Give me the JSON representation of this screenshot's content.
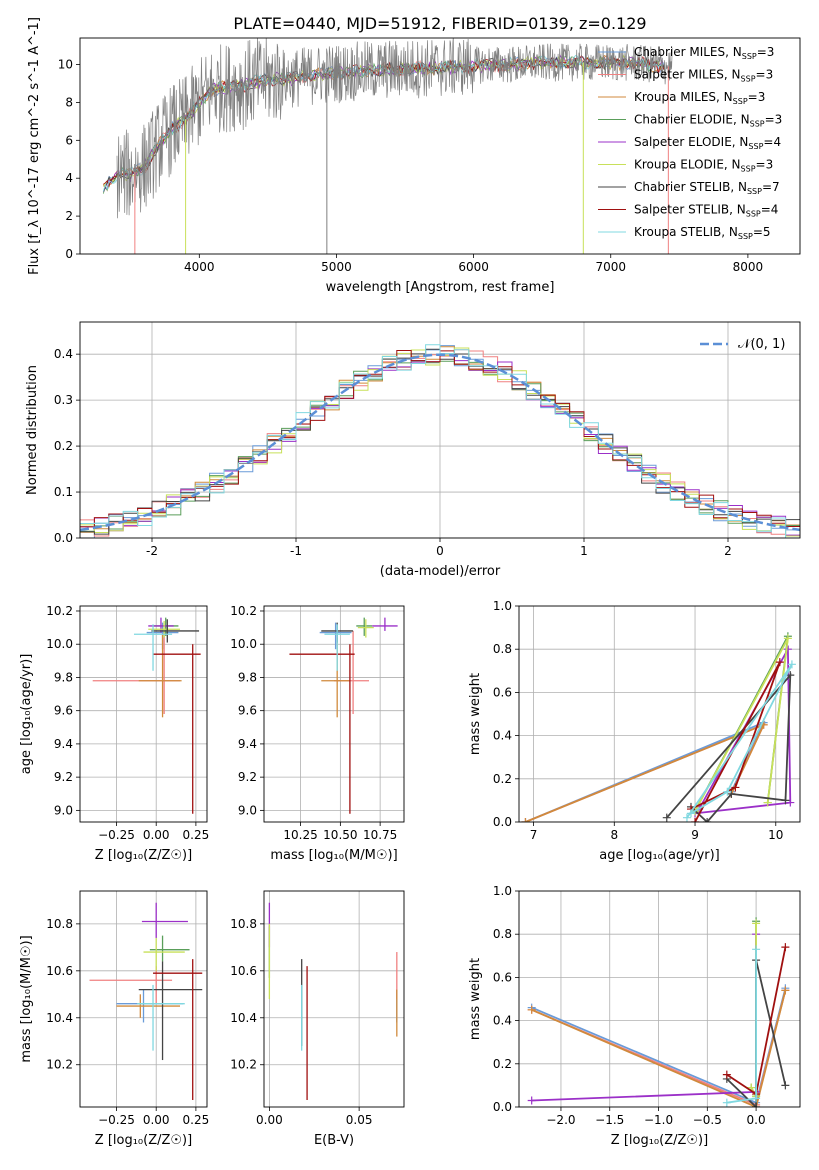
{
  "figure_title": "PLATE=0440, MJD=51912, FIBERID=0139, z=0.129",
  "colors": {
    "chabrier_miles": "#6a9bd8",
    "salpeter_miles": "#f08080",
    "kroupa_miles": "#d08a3c",
    "chabrier_elodie": "#5a9e5a",
    "salpeter_elodie": "#9b30c8",
    "kroupa_elodie": "#c8e05a",
    "chabrier_stelib": "#444444",
    "salpeter_stelib": "#a01010",
    "kroupa_stelib": "#80d8e0",
    "data": "#7f7f7f",
    "normal": "#5b8fd6"
  },
  "chart_data": [
    {
      "id": "spectrum",
      "type": "line",
      "xlabel": "wavelength [Angstrom, rest frame]",
      "ylabel": "Flux [f_λ 10^-17 erg cm^-2 s^-1 A^-1]",
      "xlim": [
        3130,
        8380
      ],
      "ylim": [
        0,
        11.4
      ],
      "xticks": [
        4000,
        5000,
        6000,
        7000,
        8000
      ],
      "yticks": [
        0,
        2,
        4,
        6,
        8,
        10
      ],
      "legend_position": "top-right",
      "legend": [
        {
          "key": "chabrier_miles",
          "base": "Chabrier MILES, N",
          "sub": "SSP",
          "tail": "=3"
        },
        {
          "key": "salpeter_miles",
          "base": "Salpeter MILES, N",
          "sub": "SSP",
          "tail": "=3"
        },
        {
          "key": "kroupa_miles",
          "base": "Kroupa MILES, N",
          "sub": "SSP",
          "tail": "=3"
        },
        {
          "key": "chabrier_elodie",
          "base": "Chabrier ELODIE, N",
          "sub": "SSP",
          "tail": "=3"
        },
        {
          "key": "salpeter_elodie",
          "base": "Salpeter ELODIE, N",
          "sub": "SSP",
          "tail": "=4"
        },
        {
          "key": "kroupa_elodie",
          "base": "Kroupa ELODIE, N",
          "sub": "SSP",
          "tail": "=3"
        },
        {
          "key": "chabrier_stelib",
          "base": "Chabrier STELIB, N",
          "sub": "SSP",
          "tail": "=7"
        },
        {
          "key": "salpeter_stelib",
          "base": "Salpeter STELIB, N",
          "sub": "SSP",
          "tail": "=4"
        },
        {
          "key": "kroupa_stelib",
          "base": "Kroupa STELIB, N",
          "sub": "SSP",
          "tail": "=5"
        }
      ],
      "continuum": {
        "x": [
          3300,
          3400,
          3500,
          3600,
          3700,
          3800,
          3900,
          4000,
          4100,
          4300,
          4500,
          4700,
          4900,
          5100,
          5300,
          5500,
          5700,
          5900,
          6100,
          6300,
          6500,
          6700,
          6900,
          7100,
          7300,
          7400
        ],
        "y": [
          3.4,
          4.2,
          4.2,
          4.6,
          5.7,
          6.6,
          7.1,
          8.0,
          8.7,
          8.9,
          9.2,
          9.3,
          9.5,
          9.6,
          9.7,
          9.8,
          9.8,
          9.9,
          10.0,
          10.0,
          10.1,
          10.1,
          10.1,
          10.1,
          10.0,
          9.9
        ]
      },
      "model_range": [
        3300,
        7400
      ],
      "data_range": [
        3400,
        7450
      ]
    },
    {
      "id": "residuals",
      "type": "step",
      "xlabel": "(data-model)/error",
      "ylabel": "Normed distribution",
      "xlim": [
        -2.5,
        2.5
      ],
      "ylim": [
        0,
        0.47
      ],
      "xticks": [
        -2,
        -1,
        0,
        1,
        2
      ],
      "yticks": [
        0.0,
        0.1,
        0.2,
        0.3,
        0.4
      ],
      "legend_position": "top-right",
      "normal_label": "𝒩(0, 1)",
      "bin_width": 0.1
    },
    {
      "id": "age_vs_Z",
      "type": "errorbar",
      "xlabel": "Z [log₁₀(Z/Z☉)]",
      "ylabel": "age  [log₁₀(age/yr)]",
      "xlim": [
        -0.48,
        0.32
      ],
      "ylim": [
        8.93,
        10.23
      ],
      "xticks": [
        -0.25,
        0.0,
        0.25
      ],
      "xtick_labels": [
        "−0.25",
        "0.00",
        "0.25"
      ],
      "yticks": [
        9.0,
        9.2,
        9.4,
        9.6,
        9.8,
        10.0,
        10.2
      ],
      "points": [
        {
          "key": "chabrier_miles",
          "x": 0.04,
          "y": 10.07,
          "xerr": [
            0.1,
            0.1
          ],
          "yerr": [
            0.1,
            0.06
          ]
        },
        {
          "key": "salpeter_miles",
          "x": 0.05,
          "y": 9.78,
          "xerr": [
            0.45,
            0.1
          ],
          "yerr": [
            0.2,
            0.3
          ]
        },
        {
          "key": "kroupa_miles",
          "x": 0.04,
          "y": 9.78,
          "xerr": [
            0.15,
            0.12
          ],
          "yerr": [
            0.22,
            0.28
          ]
        },
        {
          "key": "chabrier_elodie",
          "x": 0.06,
          "y": 10.11,
          "xerr": [
            0.08,
            0.08
          ],
          "yerr": [
            0.06,
            0.05
          ]
        },
        {
          "key": "salpeter_elodie",
          "x": 0.03,
          "y": 10.11,
          "xerr": [
            0.08,
            0.08
          ],
          "yerr": [
            0.04,
            0.05
          ]
        },
        {
          "key": "kroupa_elodie",
          "x": 0.05,
          "y": 10.09,
          "xerr": [
            0.1,
            0.1
          ],
          "yerr": [
            0.05,
            0.05
          ]
        },
        {
          "key": "chabrier_stelib",
          "x": 0.07,
          "y": 10.08,
          "xerr": [
            0.1,
            0.2
          ],
          "yerr": [
            0.07,
            0.07
          ]
        },
        {
          "key": "salpeter_stelib",
          "x": 0.23,
          "y": 9.94,
          "xerr": [
            0.25,
            0.05
          ],
          "yerr": [
            0.96,
            0.06
          ]
        },
        {
          "key": "kroupa_stelib",
          "x": -0.02,
          "y": 10.06,
          "xerr": [
            0.12,
            0.12
          ],
          "yerr": [
            0.22,
            0.06
          ]
        }
      ]
    },
    {
      "id": "age_vs_mass",
      "type": "errorbar",
      "xlabel": "mass [log₁₀(M/M☉)]",
      "ylabel": "",
      "xlim": [
        10.02,
        10.9
      ],
      "ylim": [
        8.93,
        10.23
      ],
      "xticks": [
        10.25,
        10.5,
        10.75
      ],
      "xtick_labels": [
        "10.25",
        "10.50",
        "10.75"
      ],
      "yticks": [
        9.0,
        9.2,
        9.4,
        9.6,
        9.8,
        10.0,
        10.2
      ],
      "points": [
        {
          "key": "chabrier_miles",
          "x": 10.47,
          "y": 10.07,
          "xerr": [
            0.1,
            0.1
          ],
          "yerr": [
            0.1,
            0.06
          ]
        },
        {
          "key": "salpeter_miles",
          "x": 10.58,
          "y": 9.78,
          "xerr": [
            0.12,
            0.1
          ],
          "yerr": [
            0.2,
            0.3
          ]
        },
        {
          "key": "kroupa_miles",
          "x": 10.48,
          "y": 9.78,
          "xerr": [
            0.1,
            0.08
          ],
          "yerr": [
            0.22,
            0.26
          ]
        },
        {
          "key": "chabrier_elodie",
          "x": 10.65,
          "y": 10.11,
          "xerr": [
            0.05,
            0.05
          ],
          "yerr": [
            0.06,
            0.05
          ]
        },
        {
          "key": "salpeter_elodie",
          "x": 10.78,
          "y": 10.11,
          "xerr": [
            0.08,
            0.08
          ],
          "yerr": [
            0.03,
            0.05
          ]
        },
        {
          "key": "kroupa_elodie",
          "x": 10.66,
          "y": 10.1,
          "xerr": [
            0.05,
            0.05
          ],
          "yerr": [
            0.06,
            0.05
          ]
        },
        {
          "key": "chabrier_stelib",
          "x": 10.48,
          "y": 10.08,
          "xerr": [
            0.1,
            0.1
          ],
          "yerr": [
            0.07,
            0.05
          ]
        },
        {
          "key": "salpeter_stelib",
          "x": 10.56,
          "y": 9.94,
          "xerr": [
            0.38,
            0.03
          ],
          "yerr": [
            0.96,
            0.06
          ]
        },
        {
          "key": "kroupa_stelib",
          "x": 10.48,
          "y": 10.06,
          "xerr": [
            0.08,
            0.08
          ],
          "yerr": [
            0.22,
            0.06
          ]
        }
      ]
    },
    {
      "id": "weight_vs_age",
      "type": "line",
      "xlabel": "age  [log₁₀(age/yr)]",
      "ylabel": "mass weight",
      "xlim": [
        6.82,
        10.3
      ],
      "ylim": [
        0,
        1
      ],
      "xticks": [
        7,
        8,
        9,
        10
      ],
      "yticks": [
        0.0,
        0.2,
        0.4,
        0.6,
        0.8,
        1.0
      ],
      "series": [
        {
          "key": "chabrier_miles",
          "x": [
            6.9,
            9.85,
            9.45
          ],
          "y": [
            0.0,
            0.46,
            0.14
          ]
        },
        {
          "key": "salpeter_miles",
          "x": [
            6.9,
            9.85,
            9.45
          ],
          "y": [
            0.0,
            0.45,
            0.13
          ]
        },
        {
          "key": "kroupa_miles",
          "x": [
            6.9,
            9.85,
            9.45
          ],
          "y": [
            0.0,
            0.45,
            0.13
          ]
        },
        {
          "key": "chabrier_elodie",
          "x": [
            9.0,
            10.15,
            9.9
          ],
          "y": [
            0.05,
            0.86,
            0.09
          ]
        },
        {
          "key": "salpeter_elodie",
          "x": [
            9.05,
            10.15,
            10.18,
            9.0
          ],
          "y": [
            0.06,
            0.8,
            0.09,
            0.04
          ]
        },
        {
          "key": "kroupa_elodie",
          "x": [
            9.0,
            10.15,
            9.9
          ],
          "y": [
            0.05,
            0.85,
            0.09
          ]
        },
        {
          "key": "chabrier_stelib",
          "x": [
            8.65,
            10.18,
            10.12,
            9.45,
            9.15,
            8.95
          ],
          "y": [
            0.02,
            0.68,
            0.1,
            0.13,
            0.0,
            0.07
          ]
        },
        {
          "key": "salpeter_stelib",
          "x": [
            9.0,
            10.05,
            9.5,
            8.95
          ],
          "y": [
            0.0,
            0.74,
            0.16,
            0.06
          ]
        },
        {
          "key": "kroupa_stelib",
          "x": [
            8.9,
            10.2,
            9.4,
            8.95
          ],
          "y": [
            0.02,
            0.73,
            0.14,
            0.04
          ]
        }
      ]
    },
    {
      "id": "mass_vs_Z",
      "type": "errorbar",
      "xlabel": "Z [log₁₀(Z/Z☉)]",
      "ylabel": "mass [log₁₀(M/M☉)]",
      "xlim": [
        -0.48,
        0.32
      ],
      "ylim": [
        10.02,
        10.94
      ],
      "xticks": [
        -0.25,
        0.0,
        0.25
      ],
      "xtick_labels": [
        "−0.25",
        "0.00",
        "0.25"
      ],
      "yticks": [
        10.2,
        10.4,
        10.6,
        10.8
      ],
      "points": [
        {
          "key": "chabrier_miles",
          "x": -0.08,
          "y": 10.46,
          "xerr": [
            0.17,
            0.25
          ],
          "yerr": [
            0.08,
            0.06
          ]
        },
        {
          "key": "salpeter_miles",
          "x": 0.0,
          "y": 10.56,
          "xerr": [
            0.42,
            0.1
          ],
          "yerr": [
            0.1,
            0.06
          ]
        },
        {
          "key": "kroupa_miles",
          "x": -0.1,
          "y": 10.45,
          "xerr": [
            0.15,
            0.25
          ],
          "yerr": [
            0.05,
            0.05
          ]
        },
        {
          "key": "chabrier_elodie",
          "x": 0.04,
          "y": 10.69,
          "xerr": [
            0.08,
            0.17
          ],
          "yerr": [
            0.05,
            0.06
          ]
        },
        {
          "key": "salpeter_elodie",
          "x": 0.0,
          "y": 10.81,
          "xerr": [
            0.09,
            0.2
          ],
          "yerr": [
            0.07,
            0.08
          ]
        },
        {
          "key": "kroupa_elodie",
          "x": 0.0,
          "y": 10.68,
          "xerr": [
            0.08,
            0.18
          ],
          "yerr": [
            0.08,
            0.06
          ]
        },
        {
          "key": "chabrier_stelib",
          "x": 0.04,
          "y": 10.52,
          "xerr": [
            0.15,
            0.25
          ],
          "yerr": [
            0.3,
            0.12
          ]
        },
        {
          "key": "salpeter_stelib",
          "x": 0.23,
          "y": 10.59,
          "xerr": [
            0.25,
            0.06
          ],
          "yerr": [
            0.54,
            0.06
          ]
        },
        {
          "key": "kroupa_stelib",
          "x": -0.02,
          "y": 10.46,
          "xerr": [
            0.1,
            0.2
          ],
          "yerr": [
            0.2,
            0.08
          ]
        }
      ]
    },
    {
      "id": "mass_vs_ebv",
      "type": "errorbar",
      "xlabel": "E(B-V)",
      "ylabel": "",
      "xlim": [
        -0.003,
        0.075
      ],
      "ylim": [
        10.02,
        10.94
      ],
      "xticks": [
        0.0,
        0.05
      ],
      "xtick_labels": [
        "0.00",
        "0.05"
      ],
      "yticks": [
        10.2,
        10.4,
        10.6,
        10.8
      ],
      "points": [
        {
          "key": "chabrier_miles",
          "x": 0.071,
          "y": 10.46,
          "xerr": [
            0,
            0
          ],
          "yerr": [
            0.08,
            0.06
          ]
        },
        {
          "key": "salpeter_miles",
          "x": 0.071,
          "y": 10.58,
          "xerr": [
            0,
            0
          ],
          "yerr": [
            0.1,
            0.1
          ]
        },
        {
          "key": "kroupa_miles",
          "x": 0.071,
          "y": 10.44,
          "xerr": [
            0,
            0
          ],
          "yerr": [
            0.12,
            0.08
          ]
        },
        {
          "key": "chabrier_elodie",
          "x": 0.0,
          "y": 10.69,
          "xerr": [
            0,
            0
          ],
          "yerr": [
            0.12,
            0.1
          ]
        },
        {
          "key": "salpeter_elodie",
          "x": 0.0,
          "y": 10.8,
          "xerr": [
            0,
            0
          ],
          "yerr": [
            0.1,
            0.09
          ]
        },
        {
          "key": "kroupa_elodie",
          "x": 0.0,
          "y": 10.68,
          "xerr": [
            0,
            0
          ],
          "yerr": [
            0.2,
            0.12
          ]
        },
        {
          "key": "chabrier_stelib",
          "x": 0.018,
          "y": 10.52,
          "xerr": [
            0,
            0
          ],
          "yerr": [
            0.24,
            0.13
          ]
        },
        {
          "key": "salpeter_stelib",
          "x": 0.021,
          "y": 10.34,
          "xerr": [
            0,
            0
          ],
          "yerr": [
            0.29,
            0.28
          ]
        },
        {
          "key": "kroupa_stelib",
          "x": 0.018,
          "y": 10.46,
          "xerr": [
            0,
            0
          ],
          "yerr": [
            0.2,
            0.08
          ]
        }
      ]
    },
    {
      "id": "weight_vs_Z",
      "type": "line",
      "xlabel": "Z [log₁₀(Z/Z☉)]",
      "ylabel": "mass weight",
      "xlim": [
        -2.43,
        0.45
      ],
      "ylim": [
        0,
        1
      ],
      "xticks": [
        -2.0,
        -1.5,
        -1.0,
        -0.5,
        0.0
      ],
      "xtick_labels": [
        "−2.0",
        "−1.5",
        "−1.0",
        "−0.5",
        "0.0"
      ],
      "yticks": [
        0.0,
        0.2,
        0.4,
        0.6,
        0.8,
        1.0
      ],
      "series": [
        {
          "key": "chabrier_miles",
          "x": [
            -2.3,
            0.0,
            0.3
          ],
          "y": [
            0.46,
            0.02,
            0.55
          ]
        },
        {
          "key": "salpeter_miles",
          "x": [
            -2.3,
            0.0,
            0.3
          ],
          "y": [
            0.45,
            0.01,
            0.54
          ]
        },
        {
          "key": "kroupa_miles",
          "x": [
            -2.3,
            0.0,
            0.3
          ],
          "y": [
            0.45,
            0.0,
            0.54
          ]
        },
        {
          "key": "chabrier_elodie",
          "x": [
            0.0,
            0.0,
            -0.05
          ],
          "y": [
            0.86,
            0.05,
            0.09
          ]
        },
        {
          "key": "salpeter_elodie",
          "x": [
            -2.3,
            0.0,
            0.0
          ],
          "y": [
            0.03,
            0.07,
            0.8
          ]
        },
        {
          "key": "kroupa_elodie",
          "x": [
            0.0,
            0.0,
            -0.05
          ],
          "y": [
            0.85,
            0.05,
            0.09
          ]
        },
        {
          "key": "chabrier_stelib",
          "x": [
            -0.3,
            0.0,
            0.0,
            0.3
          ],
          "y": [
            0.13,
            0.0,
            0.68,
            0.1
          ]
        },
        {
          "key": "salpeter_stelib",
          "x": [
            -0.3,
            0.0,
            0.3
          ],
          "y": [
            0.15,
            0.06,
            0.74
          ]
        },
        {
          "key": "kroupa_stelib",
          "x": [
            -0.3,
            0.0,
            0.0
          ],
          "y": [
            0.02,
            0.04,
            0.73
          ]
        }
      ]
    }
  ]
}
